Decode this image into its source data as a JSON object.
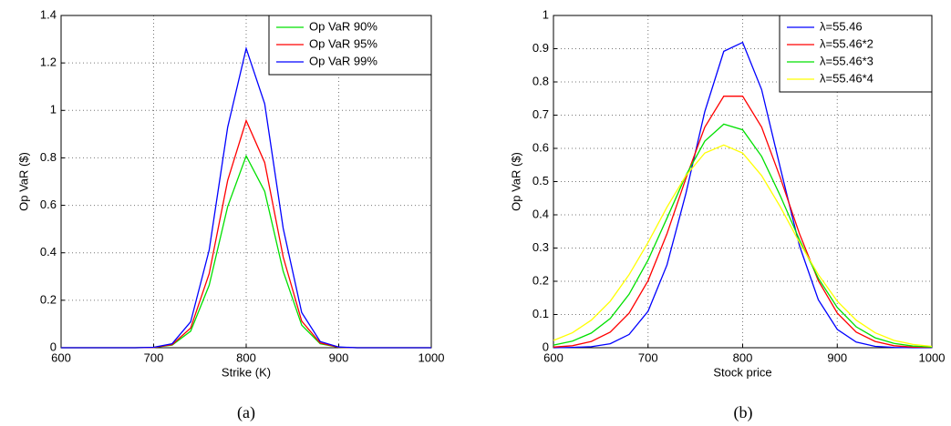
{
  "chart_data": [
    {
      "type": "line",
      "caption": "(a)",
      "xlabel": "Strike (K)",
      "ylabel": "Op VaR ($)",
      "x": [
        600,
        620,
        640,
        660,
        680,
        700,
        720,
        740,
        760,
        780,
        800,
        820,
        840,
        860,
        880,
        900,
        920,
        940,
        960,
        980,
        1000
      ],
      "xlim": [
        600,
        1000
      ],
      "xticks": [
        600,
        700,
        800,
        900,
        1000
      ],
      "ylim": [
        0,
        1.4
      ],
      "yticks": [
        0,
        0.2,
        0.4,
        0.6,
        0.8,
        1,
        1.2,
        1.4
      ],
      "grid": true,
      "legend": "upper right",
      "series": [
        {
          "name": "Op VaR 90%",
          "color": "#00e000",
          "values": [
            0,
            0,
            0,
            0,
            0,
            0.001,
            0.011,
            0.07,
            0.263,
            0.595,
            0.808,
            0.659,
            0.322,
            0.095,
            0.017,
            0.002,
            0,
            0,
            0,
            0,
            0
          ]
        },
        {
          "name": "Op VaR 95%",
          "color": "#ff0000",
          "values": [
            0,
            0,
            0,
            0,
            0,
            0.001,
            0.013,
            0.083,
            0.312,
            0.705,
            0.957,
            0.78,
            0.382,
            0.112,
            0.02,
            0.002,
            0,
            0,
            0,
            0,
            0
          ]
        },
        {
          "name": "Op VaR 99%",
          "color": "#0000ff",
          "values": [
            0,
            0,
            0,
            0,
            0,
            0.002,
            0.017,
            0.109,
            0.411,
            0.929,
            1.261,
            1.028,
            0.503,
            0.148,
            0.026,
            0.003,
            0,
            0,
            0,
            0,
            0
          ]
        }
      ]
    },
    {
      "type": "line",
      "caption": "(b)",
      "xlabel": "Stock price",
      "ylabel": "Op VaR ($)",
      "x": [
        600,
        620,
        640,
        660,
        680,
        700,
        720,
        740,
        760,
        780,
        800,
        820,
        840,
        860,
        880,
        900,
        920,
        940,
        960,
        980,
        1000
      ],
      "xlim": [
        600,
        1000
      ],
      "xticks": [
        600,
        700,
        800,
        900,
        1000
      ],
      "ylim": [
        0,
        1
      ],
      "yticks": [
        0,
        0.1,
        0.2,
        0.3,
        0.4,
        0.5,
        0.6,
        0.7,
        0.8,
        0.9,
        1
      ],
      "grid": true,
      "legend": "upper right",
      "series": [
        {
          "name": "λ=55.46",
          "color": "#0000ff",
          "values": [
            0,
            0.001,
            0.003,
            0.012,
            0.04,
            0.11,
            0.249,
            0.465,
            0.711,
            0.892,
            0.919,
            0.777,
            0.539,
            0.307,
            0.144,
            0.055,
            0.017,
            0.004,
            0.001,
            0,
            0
          ]
        },
        {
          "name": "λ=55.46*2",
          "color": "#ff0000",
          "values": [
            0.002,
            0.006,
            0.019,
            0.047,
            0.104,
            0.202,
            0.343,
            0.51,
            0.664,
            0.757,
            0.757,
            0.664,
            0.51,
            0.343,
            0.202,
            0.104,
            0.047,
            0.019,
            0.006,
            0.002,
            0.001
          ]
        },
        {
          "name": "λ=55.46*3",
          "color": "#00e000",
          "values": [
            0.008,
            0.02,
            0.044,
            0.088,
            0.161,
            0.264,
            0.39,
            0.519,
            0.622,
            0.673,
            0.656,
            0.576,
            0.456,
            0.325,
            0.209,
            0.121,
            0.063,
            0.03,
            0.013,
            0.005,
            0.002
          ]
        },
        {
          "name": "λ=55.46*4",
          "color": "#ffff00",
          "values": [
            0.022,
            0.045,
            0.083,
            0.14,
            0.22,
            0.317,
            0.423,
            0.518,
            0.586,
            0.61,
            0.586,
            0.518,
            0.423,
            0.317,
            0.22,
            0.14,
            0.083,
            0.045,
            0.022,
            0.01,
            0.004
          ]
        }
      ]
    }
  ]
}
